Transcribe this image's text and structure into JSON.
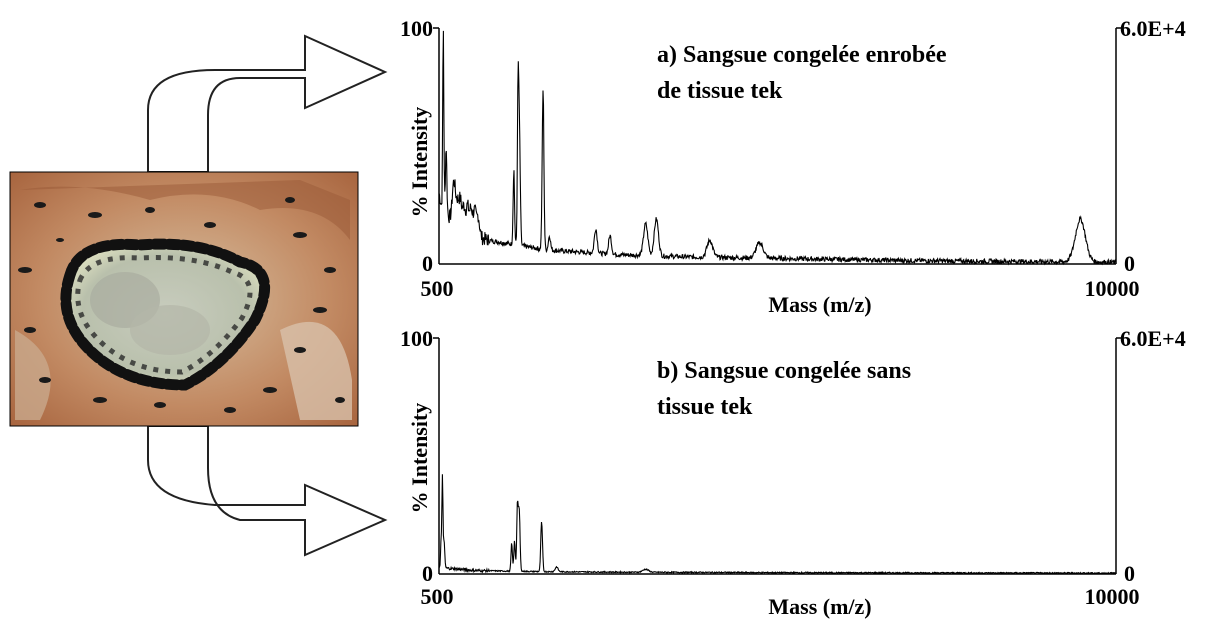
{
  "chart_data": [
    {
      "type": "line",
      "title": "a) Sangsue congelée enrobée",
      "subtitle": "de tissue tek",
      "xlabel": "Mass (m/z)",
      "ylabel": "% Intensity",
      "xlim": [
        500,
        10000
      ],
      "ylim": [
        0,
        100
      ],
      "x_ticks": [
        "500",
        "10000"
      ],
      "y_ticks": [
        "0",
        "100"
      ],
      "right_axis_ticks": [
        "0",
        "6.0E+4"
      ],
      "grid": false,
      "series": [
        {
          "baseline": [
            [
              500,
              30
            ],
            [
              540,
              24
            ],
            [
              600,
              22
            ],
            [
              700,
              17
            ],
            [
              800,
              15
            ],
            [
              900,
              13
            ],
            [
              1000,
              12
            ],
            [
              1200,
              10
            ],
            [
              1400,
              9
            ],
            [
              1600,
              8
            ],
            [
              1800,
              7
            ],
            [
              2000,
              6
            ],
            [
              2500,
              5
            ],
            [
              3000,
              4
            ],
            [
              4000,
              3
            ],
            [
              5000,
              2.5
            ],
            [
              6000,
              2
            ],
            [
              7000,
              1.5
            ],
            [
              8000,
              1.2
            ],
            [
              9000,
              1
            ],
            [
              10000,
              0.8
            ]
          ],
          "peaks": [
            {
              "x": 560,
              "y": 100,
              "w": 8
            },
            {
              "x": 600,
              "y": 50,
              "w": 10
            },
            {
              "x": 700,
              "y": 28,
              "w": 20
            },
            {
              "x": 720,
              "y": 26,
              "w": 20
            },
            {
              "x": 760,
              "y": 25,
              "w": 20
            },
            {
              "x": 800,
              "y": 26,
              "w": 20
            },
            {
              "x": 850,
              "y": 24,
              "w": 20
            },
            {
              "x": 900,
              "y": 24,
              "w": 20
            },
            {
              "x": 950,
              "y": 23,
              "w": 20
            },
            {
              "x": 1000,
              "y": 22,
              "w": 20
            },
            {
              "x": 1050,
              "y": 20,
              "w": 20
            },
            {
              "x": 1550,
              "y": 40,
              "w": 10
            },
            {
              "x": 1610,
              "y": 73,
              "w": 10
            },
            {
              "x": 1630,
              "y": 50,
              "w": 12
            },
            {
              "x": 1960,
              "y": 74,
              "w": 12
            },
            {
              "x": 2050,
              "y": 12,
              "w": 15
            },
            {
              "x": 2700,
              "y": 15,
              "w": 20
            },
            {
              "x": 2900,
              "y": 12,
              "w": 20
            },
            {
              "x": 3400,
              "y": 17,
              "w": 30
            },
            {
              "x": 3550,
              "y": 19,
              "w": 30
            },
            {
              "x": 4300,
              "y": 10,
              "w": 40
            },
            {
              "x": 5000,
              "y": 9,
              "w": 50
            },
            {
              "x": 9500,
              "y": 19,
              "w": 70
            }
          ]
        }
      ]
    },
    {
      "type": "line",
      "title": "b) Sangsue congelée sans",
      "subtitle": "tissue tek",
      "xlabel": "Mass (m/z)",
      "ylabel": "% Intensity",
      "xlim": [
        500,
        10000
      ],
      "ylim": [
        0,
        100
      ],
      "x_ticks": [
        "500",
        "10000"
      ],
      "y_ticks": [
        "0",
        "100"
      ],
      "right_axis_ticks": [
        "0",
        "6.0E+4"
      ],
      "grid": false,
      "series": [
        {
          "baseline": [
            [
              500,
              3
            ],
            [
              600,
              2.5
            ],
            [
              800,
              2
            ],
            [
              1000,
              1.5
            ],
            [
              1500,
              1.2
            ],
            [
              2000,
              1
            ],
            [
              3000,
              0.8
            ],
            [
              5000,
              0.6
            ],
            [
              7000,
              0.5
            ],
            [
              10000,
              0.4
            ]
          ],
          "peaks": [
            {
              "x": 530,
              "y": 14,
              "w": 8
            },
            {
              "x": 548,
              "y": 40,
              "w": 7
            },
            {
              "x": 570,
              "y": 14,
              "w": 10
            },
            {
              "x": 1520,
              "y": 13,
              "w": 10
            },
            {
              "x": 1560,
              "y": 14,
              "w": 10
            },
            {
              "x": 1600,
              "y": 28,
              "w": 10
            },
            {
              "x": 1625,
              "y": 27,
              "w": 12
            },
            {
              "x": 1940,
              "y": 22,
              "w": 12
            },
            {
              "x": 2150,
              "y": 3,
              "w": 20
            },
            {
              "x": 3400,
              "y": 2,
              "w": 40
            }
          ]
        }
      ]
    }
  ],
  "image": {
    "description_icon": "leech-tissue-section-photo"
  },
  "colors": {
    "spectrum": "#000000",
    "arrow_fill": "#ffffff",
    "arrow_stroke": "#222222"
  }
}
